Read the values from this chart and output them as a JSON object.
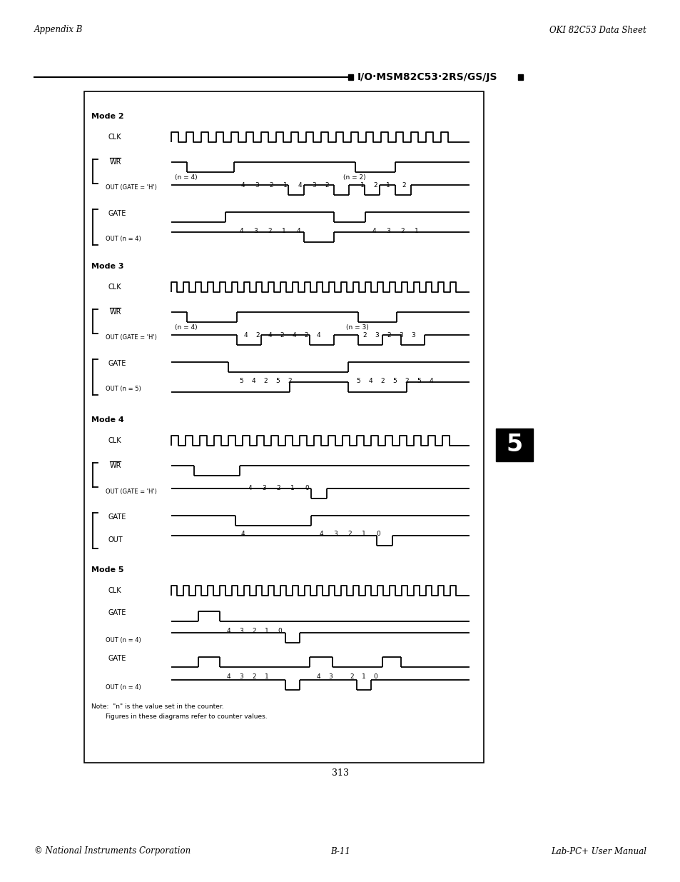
{
  "page_title_left": "Appendix B",
  "page_title_right": "OKI 82C53 Data Sheet",
  "chip_label": "I/O·MSM82C53·2RS/GS/JS",
  "page_number": "313",
  "footer_left": "© National Instruments Corporation",
  "footer_center": "B-11",
  "footer_right": "Lab-PC+ User Manual"
}
